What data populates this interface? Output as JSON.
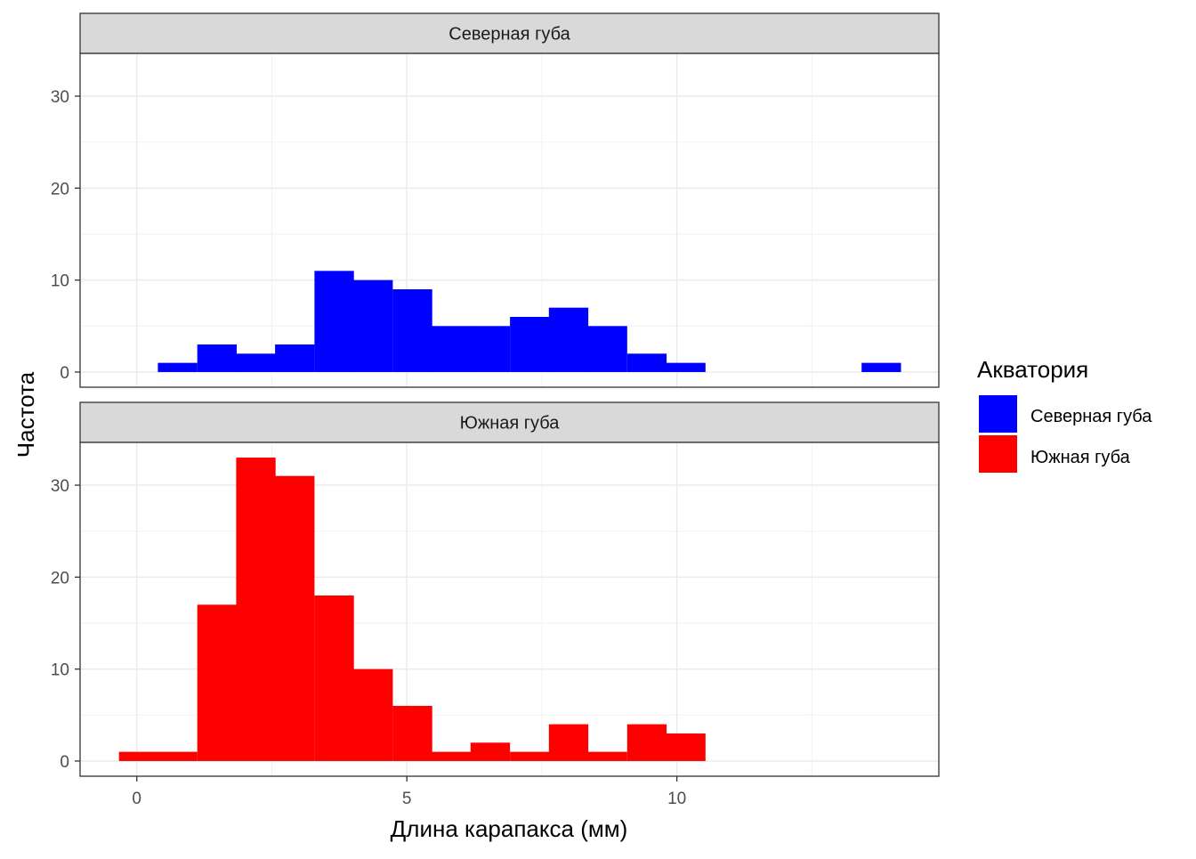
{
  "chart_data": {
    "type": "bar",
    "subtype": "faceted-histogram",
    "xlabel": "Длина карапакса (мм)",
    "ylabel": "Частота",
    "xlim": [
      -1.05,
      14.85
    ],
    "ylim": [
      -1.65,
      34.65
    ],
    "x_ticks": [
      0,
      5,
      10
    ],
    "y_ticks": [
      0,
      10,
      20,
      30
    ],
    "bin_width": 0.72,
    "grid": true,
    "legend": {
      "title": "Акватория",
      "position": "right",
      "entries": [
        {
          "label": "Северная губа",
          "color": "#0000ff"
        },
        {
          "label": "Южная губа",
          "color": "#ff0000"
        }
      ]
    },
    "facets": [
      {
        "label": "Северная губа",
        "color": "#0000ff",
        "bin_centers": [
          0.75,
          1.48,
          2.2,
          2.92,
          3.65,
          4.37,
          5.1,
          5.82,
          6.54,
          7.27,
          7.99,
          8.71,
          9.44,
          10.16,
          13.78
        ],
        "counts": [
          1,
          3,
          2,
          3,
          11,
          10,
          9,
          5,
          5,
          6,
          7,
          5,
          2,
          1,
          1
        ]
      },
      {
        "label": "Южная губа",
        "color": "#ff0000",
        "bin_centers": [
          0.03,
          0.75,
          1.48,
          2.2,
          2.92,
          3.65,
          4.37,
          5.1,
          5.82,
          6.54,
          7.27,
          7.99,
          8.71,
          9.44,
          10.16
        ],
        "counts": [
          1,
          1,
          17,
          33,
          31,
          18,
          10,
          6,
          1,
          2,
          1,
          4,
          1,
          4,
          3
        ]
      }
    ]
  }
}
